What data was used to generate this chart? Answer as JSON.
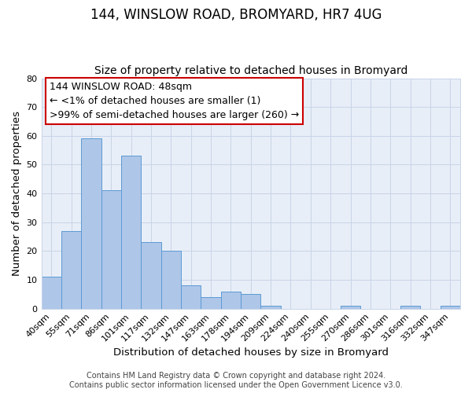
{
  "title": "144, WINSLOW ROAD, BROMYARD, HR7 4UG",
  "subtitle": "Size of property relative to detached houses in Bromyard",
  "xlabel": "Distribution of detached houses by size in Bromyard",
  "ylabel": "Number of detached properties",
  "bar_labels": [
    "40sqm",
    "55sqm",
    "71sqm",
    "86sqm",
    "101sqm",
    "117sqm",
    "132sqm",
    "147sqm",
    "163sqm",
    "178sqm",
    "194sqm",
    "209sqm",
    "224sqm",
    "240sqm",
    "255sqm",
    "270sqm",
    "286sqm",
    "301sqm",
    "316sqm",
    "332sqm",
    "347sqm"
  ],
  "bar_values": [
    11,
    27,
    59,
    41,
    53,
    23,
    20,
    8,
    4,
    6,
    5,
    1,
    0,
    0,
    0,
    1,
    0,
    0,
    1,
    0,
    1
  ],
  "bar_color": "#aec6e8",
  "bar_edge_color": "#5b9bd5",
  "ylim": [
    0,
    80
  ],
  "yticks": [
    0,
    10,
    20,
    30,
    40,
    50,
    60,
    70,
    80
  ],
  "annotation_line1": "144 WINSLOW ROAD: 48sqm",
  "annotation_line2": "← <1% of detached houses are smaller (1)",
  "annotation_line3": ">99% of semi-detached houses are larger (260) →",
  "annotation_box_color": "#ffffff",
  "annotation_box_edge_color": "#cc0000",
  "footer_line1": "Contains HM Land Registry data © Crown copyright and database right 2024.",
  "footer_line2": "Contains public sector information licensed under the Open Government Licence v3.0.",
  "bg_color": "#ffffff",
  "plot_bg_color": "#e8eef7",
  "grid_color": "#c8d4e8",
  "title_fontsize": 12,
  "subtitle_fontsize": 10,
  "axis_label_fontsize": 9.5,
  "tick_fontsize": 8,
  "annotation_fontsize": 9,
  "footer_fontsize": 7
}
